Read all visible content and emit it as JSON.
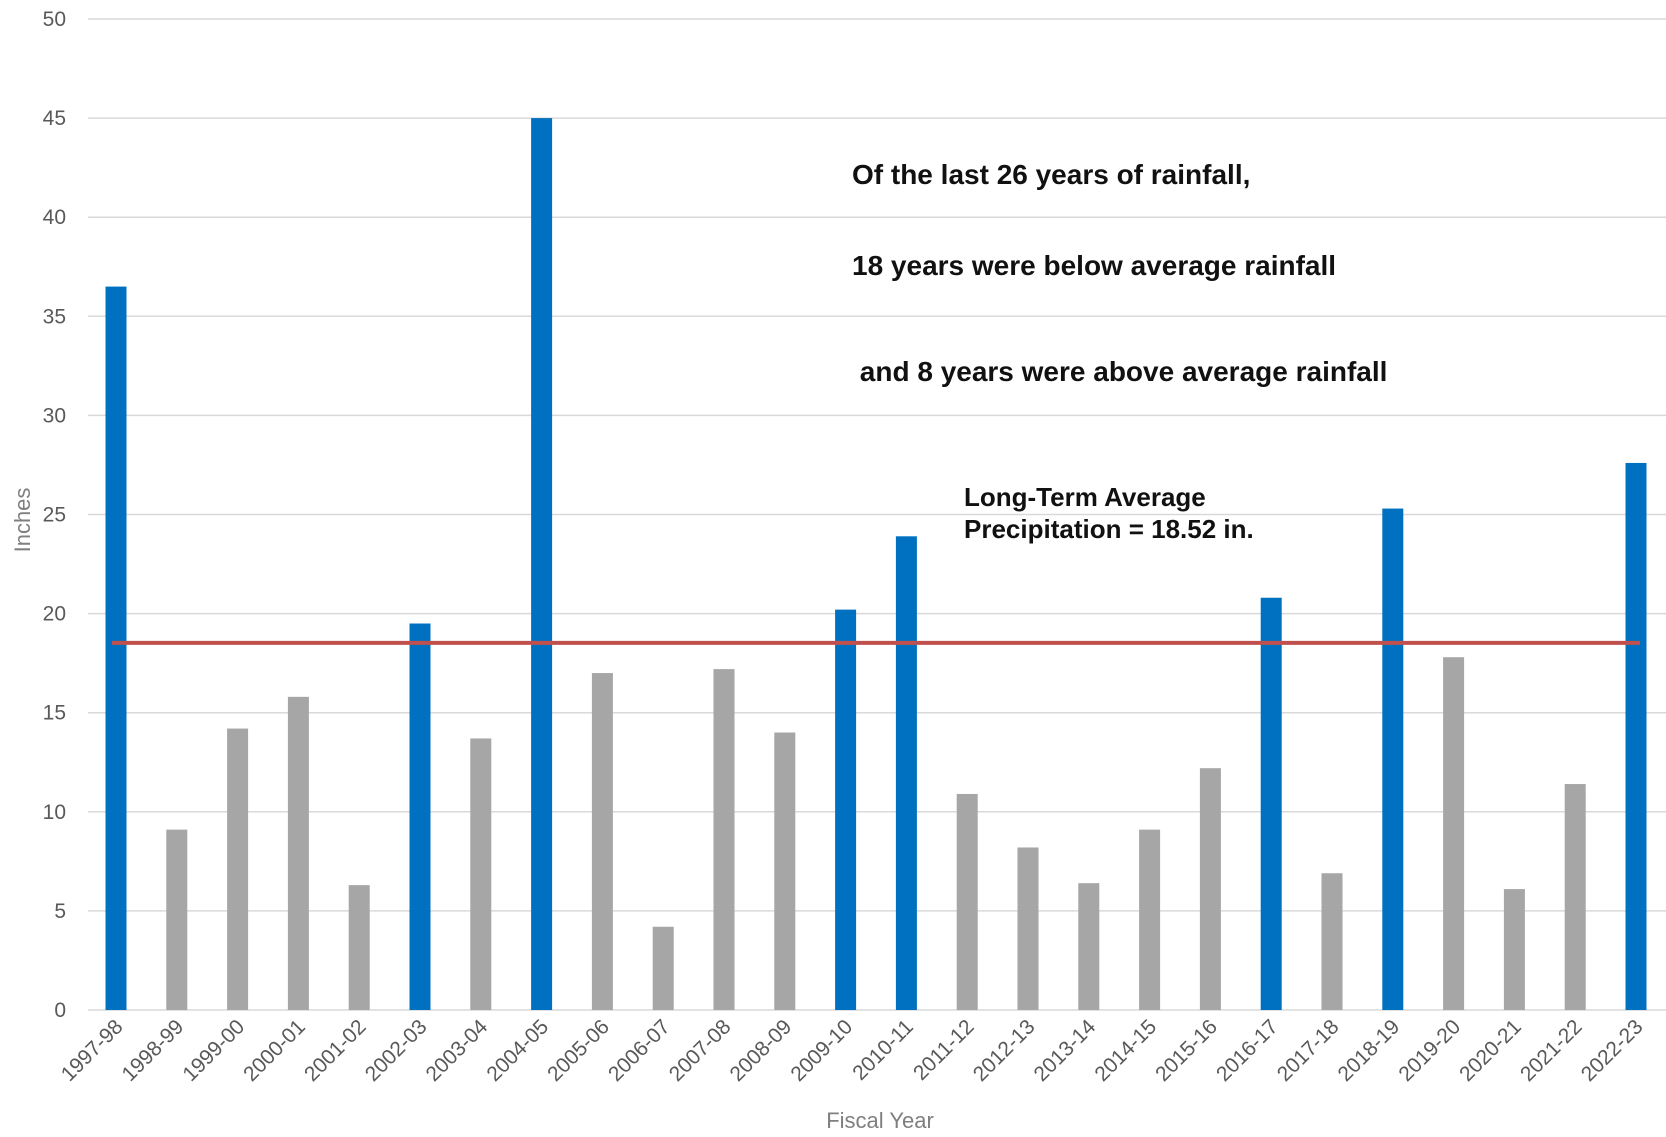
{
  "chart_data": {
    "type": "bar",
    "xlabel": "Fiscal Year",
    "ylabel": "Inches",
    "ylim": [
      0,
      50
    ],
    "yticks": [
      0,
      5,
      10,
      15,
      20,
      25,
      30,
      35,
      40,
      45,
      50
    ],
    "grid": true,
    "legend": "none",
    "categories": [
      "1997-98",
      "1998-99",
      "1999-00",
      "2000-01",
      "2001-02",
      "2002-03",
      "2003-04",
      "2004-05",
      "2005-06",
      "2006-07",
      "2007-08",
      "2008-09",
      "2009-10",
      "2010-11",
      "2011-12",
      "2012-13",
      "2013-14",
      "2014-15",
      "2015-16",
      "2016-17",
      "2017-18",
      "2018-19",
      "2019-20",
      "2020-21",
      "2021-22",
      "2022-23"
    ],
    "values": [
      36.5,
      9.1,
      14.2,
      15.8,
      6.3,
      19.5,
      13.7,
      45.0,
      17.0,
      4.2,
      17.2,
      14.0,
      20.2,
      23.9,
      10.9,
      8.2,
      6.4,
      9.1,
      12.2,
      20.8,
      6.9,
      25.3,
      17.8,
      6.1,
      11.4,
      27.6
    ],
    "above_average": [
      true,
      false,
      false,
      false,
      false,
      true,
      false,
      true,
      false,
      false,
      false,
      false,
      true,
      true,
      false,
      false,
      false,
      false,
      false,
      true,
      false,
      true,
      false,
      false,
      false,
      true
    ],
    "colors": {
      "above_average": "#0070c0",
      "below_average": "#a6a6a6",
      "average_line": "#c0504d",
      "gridline": "#d9d9d9"
    },
    "average_line": {
      "value": 18.52,
      "label_line1": "Long-Term Average",
      "label_line2": "Precipitation = 18.52 in."
    },
    "annotations": [
      "Of the last 26 years of rainfall,",
      "18 years were below average rainfall",
      " and 8 years were above average rainfall"
    ]
  }
}
